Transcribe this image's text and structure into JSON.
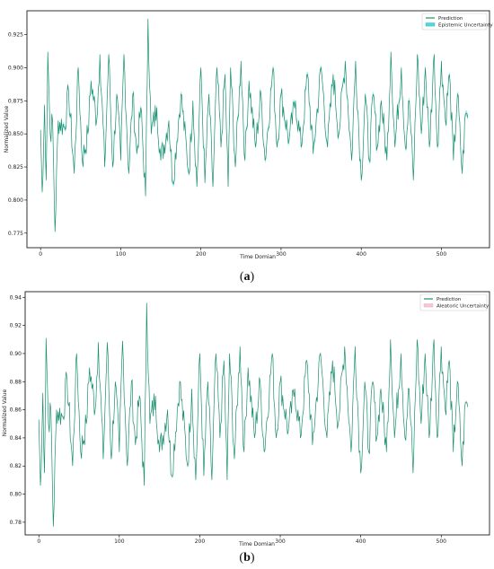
{
  "chart_data": [
    {
      "panel": "(a)",
      "panel_letter": "a",
      "type": "line",
      "xlabel": "Time Domian",
      "ylabel": "Normalized Value",
      "xlim": [
        -17,
        560
      ],
      "ylim": [
        0.764,
        0.943
      ],
      "xticks": [
        0,
        100,
        200,
        300,
        400,
        500
      ],
      "yticks": [
        0.775,
        0.8,
        0.825,
        0.85,
        0.875,
        0.9,
        0.925
      ],
      "ytick_labels": [
        "0.775",
        "0.800",
        "0.825",
        "0.850",
        "0.875",
        "0.900",
        "0.925"
      ],
      "grid": false,
      "legend_position": "top-right",
      "series": [
        {
          "name": "Prediction",
          "color": "#1a9070",
          "kind": "line"
        },
        {
          "name": "Epistemic Uncertainty",
          "color": "#4fd8d8",
          "kind": "band"
        }
      ],
      "x_range": [
        0,
        533
      ],
      "n_points": 534,
      "anchors": [
        [
          0,
          0.853
        ],
        [
          2,
          0.806
        ],
        [
          3,
          0.818
        ],
        [
          5,
          0.872
        ],
        [
          7,
          0.815
        ],
        [
          9,
          0.912
        ],
        [
          12,
          0.85
        ],
        [
          15,
          0.86
        ],
        [
          18,
          0.776
        ],
        [
          22,
          0.86
        ],
        [
          30,
          0.855
        ],
        [
          35,
          0.882
        ],
        [
          42,
          0.82
        ],
        [
          47,
          0.9
        ],
        [
          52,
          0.83
        ],
        [
          59,
          0.85
        ],
        [
          63,
          0.89
        ],
        [
          70,
          0.86
        ],
        [
          74,
          0.91
        ],
        [
          80,
          0.825
        ],
        [
          85,
          0.91
        ],
        [
          90,
          0.825
        ],
        [
          95,
          0.88
        ],
        [
          100,
          0.83
        ],
        [
          104,
          0.91
        ],
        [
          110,
          0.82
        ],
        [
          115,
          0.88
        ],
        [
          120,
          0.835
        ],
        [
          125,
          0.87
        ],
        [
          131,
          0.803
        ],
        [
          134,
          0.937
        ],
        [
          138,
          0.85
        ],
        [
          145,
          0.87
        ],
        [
          150,
          0.83
        ],
        [
          160,
          0.86
        ],
        [
          165,
          0.813
        ],
        [
          175,
          0.88
        ],
        [
          185,
          0.82
        ],
        [
          190,
          0.875
        ],
        [
          195,
          0.81
        ],
        [
          200,
          0.9
        ],
        [
          205,
          0.813
        ],
        [
          210,
          0.88
        ],
        [
          215,
          0.81
        ],
        [
          220,
          0.9
        ],
        [
          225,
          0.84
        ],
        [
          230,
          0.895
        ],
        [
          234,
          0.81
        ],
        [
          237,
          0.9
        ],
        [
          243,
          0.825
        ],
        [
          250,
          0.905
        ],
        [
          255,
          0.83
        ],
        [
          260,
          0.89
        ],
        [
          268,
          0.84
        ],
        [
          275,
          0.88
        ],
        [
          280,
          0.83
        ],
        [
          290,
          0.9
        ],
        [
          295,
          0.84
        ],
        [
          300,
          0.88
        ],
        [
          310,
          0.845
        ],
        [
          318,
          0.875
        ],
        [
          325,
          0.84
        ],
        [
          333,
          0.895
        ],
        [
          340,
          0.835
        ],
        [
          350,
          0.9
        ],
        [
          358,
          0.84
        ],
        [
          365,
          0.895
        ],
        [
          372,
          0.85
        ],
        [
          380,
          0.905
        ],
        [
          388,
          0.83
        ],
        [
          393,
          0.905
        ],
        [
          400,
          0.815
        ],
        [
          405,
          0.88
        ],
        [
          410,
          0.83
        ],
        [
          415,
          0.88
        ],
        [
          420,
          0.84
        ],
        [
          425,
          0.875
        ],
        [
          432,
          0.83
        ],
        [
          437,
          0.912
        ],
        [
          442,
          0.84
        ],
        [
          450,
          0.9
        ],
        [
          455,
          0.84
        ],
        [
          460,
          0.875
        ],
        [
          465,
          0.815
        ],
        [
          470,
          0.91
        ],
        [
          475,
          0.85
        ],
        [
          480,
          0.9
        ],
        [
          485,
          0.84
        ],
        [
          491,
          0.91
        ],
        [
          495,
          0.84
        ],
        [
          500,
          0.905
        ],
        [
          505,
          0.86
        ],
        [
          510,
          0.895
        ],
        [
          515,
          0.83
        ],
        [
          520,
          0.88
        ],
        [
          526,
          0.82
        ],
        [
          530,
          0.865
        ],
        [
          533,
          0.862
        ]
      ]
    },
    {
      "panel": "(b)",
      "panel_letter": "b",
      "type": "line",
      "xlabel": "Time Domian",
      "ylabel": "Normalized Value",
      "xlim": [
        -17,
        560
      ],
      "ylim": [
        0.771,
        0.944
      ],
      "xticks": [
        0,
        100,
        200,
        300,
        400,
        500
      ],
      "yticks": [
        0.78,
        0.8,
        0.82,
        0.84,
        0.86,
        0.88,
        0.9,
        0.92,
        0.94
      ],
      "ytick_labels": [
        "0.78",
        "0.80",
        "0.82",
        "0.84",
        "0.86",
        "0.88",
        "0.90",
        "0.92",
        "0.94"
      ],
      "grid": false,
      "legend_position": "top-right",
      "series": [
        {
          "name": "Prediction",
          "color": "#1a9070",
          "kind": "line"
        },
        {
          "name": "Aleatoric Uncertainty",
          "color": "#f4c6d6",
          "kind": "band"
        }
      ],
      "x_range": [
        0,
        533
      ],
      "n_points": 534,
      "anchors": [
        [
          0,
          0.853
        ],
        [
          2,
          0.806
        ],
        [
          3,
          0.818
        ],
        [
          5,
          0.872
        ],
        [
          7,
          0.815
        ],
        [
          9,
          0.911
        ],
        [
          12,
          0.85
        ],
        [
          15,
          0.86
        ],
        [
          18,
          0.777
        ],
        [
          22,
          0.86
        ],
        [
          30,
          0.855
        ],
        [
          35,
          0.882
        ],
        [
          42,
          0.82
        ],
        [
          47,
          0.9
        ],
        [
          52,
          0.83
        ],
        [
          59,
          0.85
        ],
        [
          63,
          0.89
        ],
        [
          70,
          0.86
        ],
        [
          74,
          0.908
        ],
        [
          80,
          0.825
        ],
        [
          85,
          0.908
        ],
        [
          90,
          0.825
        ],
        [
          95,
          0.88
        ],
        [
          100,
          0.83
        ],
        [
          104,
          0.909
        ],
        [
          110,
          0.82
        ],
        [
          115,
          0.88
        ],
        [
          120,
          0.835
        ],
        [
          125,
          0.87
        ],
        [
          131,
          0.806
        ],
        [
          134,
          0.936
        ],
        [
          138,
          0.85
        ],
        [
          145,
          0.87
        ],
        [
          150,
          0.83
        ],
        [
          160,
          0.86
        ],
        [
          165,
          0.813
        ],
        [
          175,
          0.88
        ],
        [
          185,
          0.82
        ],
        [
          190,
          0.875
        ],
        [
          195,
          0.81
        ],
        [
          200,
          0.9
        ],
        [
          205,
          0.813
        ],
        [
          210,
          0.88
        ],
        [
          215,
          0.81
        ],
        [
          220,
          0.9
        ],
        [
          225,
          0.84
        ],
        [
          230,
          0.895
        ],
        [
          234,
          0.81
        ],
        [
          237,
          0.9
        ],
        [
          243,
          0.825
        ],
        [
          250,
          0.905
        ],
        [
          255,
          0.83
        ],
        [
          260,
          0.89
        ],
        [
          268,
          0.84
        ],
        [
          275,
          0.88
        ],
        [
          280,
          0.83
        ],
        [
          290,
          0.9
        ],
        [
          295,
          0.84
        ],
        [
          300,
          0.88
        ],
        [
          310,
          0.845
        ],
        [
          318,
          0.875
        ],
        [
          325,
          0.84
        ],
        [
          333,
          0.895
        ],
        [
          340,
          0.835
        ],
        [
          350,
          0.9
        ],
        [
          358,
          0.84
        ],
        [
          365,
          0.895
        ],
        [
          372,
          0.85
        ],
        [
          380,
          0.905
        ],
        [
          388,
          0.83
        ],
        [
          393,
          0.905
        ],
        [
          400,
          0.815
        ],
        [
          405,
          0.88
        ],
        [
          410,
          0.83
        ],
        [
          415,
          0.88
        ],
        [
          420,
          0.84
        ],
        [
          425,
          0.875
        ],
        [
          432,
          0.83
        ],
        [
          437,
          0.91
        ],
        [
          442,
          0.84
        ],
        [
          450,
          0.9
        ],
        [
          455,
          0.84
        ],
        [
          460,
          0.875
        ],
        [
          465,
          0.815
        ],
        [
          470,
          0.91
        ],
        [
          475,
          0.85
        ],
        [
          480,
          0.9
        ],
        [
          485,
          0.84
        ],
        [
          491,
          0.91
        ],
        [
          495,
          0.84
        ],
        [
          500,
          0.905
        ],
        [
          505,
          0.86
        ],
        [
          510,
          0.895
        ],
        [
          515,
          0.83
        ],
        [
          520,
          0.88
        ],
        [
          526,
          0.82
        ],
        [
          530,
          0.865
        ],
        [
          533,
          0.862
        ]
      ]
    }
  ]
}
